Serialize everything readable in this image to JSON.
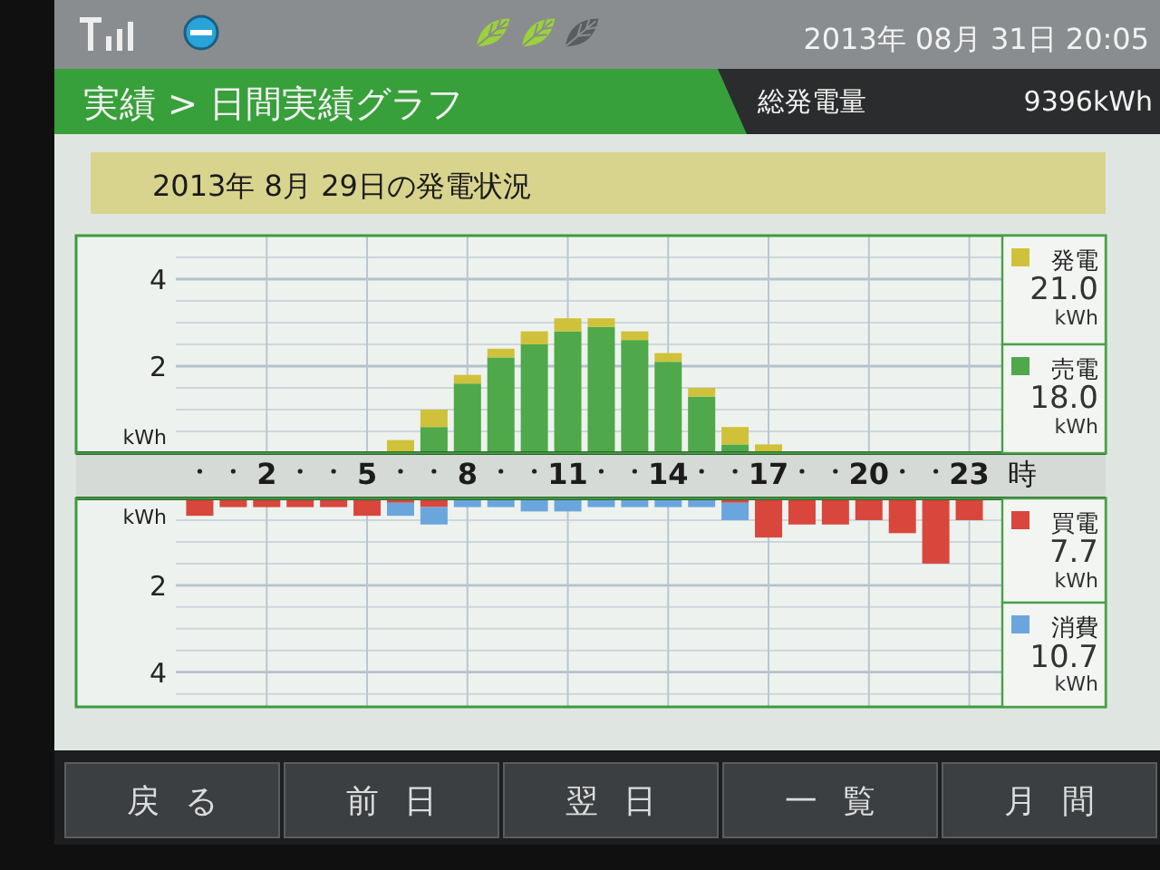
{
  "chart_data": [
    {
      "type": "other",
      "title": "実績 > 日間実績グラフ",
      "annotations": [
        "総発電量",
        "9396kWh",
        "2013年 08月 31日 20:05",
        "戻る",
        "前日",
        "翌日",
        "一覧",
        "月間"
      ]
    },
    {
      "type": "bar",
      "title": "2013年 8月 29日の発電状況",
      "stacked": true,
      "categories": [
        null,
        null,
        "2",
        null,
        null,
        "5",
        null,
        null,
        "8",
        null,
        null,
        "11",
        null,
        null,
        "14",
        null,
        null,
        "17",
        null,
        null,
        "20",
        null,
        null,
        "23"
      ],
      "xlabel": "時",
      "ylabel": "kWh",
      "ylim": [
        0,
        5
      ],
      "yticks": [
        {
          "value": 0.5,
          "label": null
        },
        {
          "value": 1,
          "label": null
        },
        {
          "value": 1.5,
          "label": null
        },
        {
          "value": 2,
          "label": "2"
        },
        {
          "value": 2.5,
          "label": null
        },
        {
          "value": 3,
          "label": null
        },
        {
          "value": 3.5,
          "label": null
        },
        {
          "value": 4,
          "label": "4"
        },
        {
          "value": 4.5,
          "label": null
        }
      ],
      "grid": true,
      "legend": "right",
      "series": [
        {
          "name": "売電",
          "color": "#4fa84a",
          "values": [
            0,
            0,
            0,
            0,
            0,
            0,
            0,
            0.6,
            1.6,
            2.2,
            2.5,
            2.8,
            2.9,
            2.6,
            2.1,
            1.3,
            0.2,
            0,
            0,
            0,
            0,
            0,
            0,
            0
          ]
        },
        {
          "name": "発電",
          "color": "#cfc23a",
          "values": [
            0,
            0,
            0,
            0,
            0,
            0,
            0.3,
            0.4,
            0.2,
            0.2,
            0.3,
            0.3,
            0.2,
            0.2,
            0.2,
            0.2,
            0.4,
            0.2,
            0,
            0,
            0,
            0,
            0,
            0
          ]
        }
      ],
      "annotations": [
        "18.0 kWh",
        "21.0 kWh"
      ]
    },
    {
      "type": "bar",
      "stacked": true,
      "categories": [
        null,
        null,
        "2",
        null,
        null,
        "5",
        null,
        null,
        "8",
        null,
        null,
        "11",
        null,
        null,
        "14",
        null,
        null,
        "17",
        null,
        null,
        "20",
        null,
        null,
        "23"
      ],
      "tick_labels": "y",
      "ylabel": "kWh",
      "ylim": [
        4.8,
        0
      ],
      "yticks": [
        {
          "value": 0.5,
          "label": null
        },
        {
          "value": 1,
          "label": null
        },
        {
          "value": 1.5,
          "label": null
        },
        {
          "value": 2,
          "label": "2"
        },
        {
          "value": 2.5,
          "label": null
        },
        {
          "value": 3,
          "label": null
        },
        {
          "value": 3.5,
          "label": null
        },
        {
          "value": 4,
          "label": "4"
        },
        {
          "value": 4.5,
          "label": null
        }
      ],
      "grid": true,
      "legend": "right",
      "series": [
        {
          "name": "買電",
          "color": "#d9463c",
          "values": [
            0.4,
            0.2,
            0.2,
            0.2,
            0.2,
            0.4,
            0.1,
            0.2,
            0,
            0,
            0,
            0,
            0,
            0,
            0,
            0,
            0.1,
            0.9,
            0.6,
            0.6,
            0.5,
            0.8,
            1.5,
            0.5
          ]
        },
        {
          "name": "消費",
          "color": "#6aa6dd",
          "values": [
            0,
            0,
            0,
            0,
            0,
            0,
            0.3,
            0.4,
            0.2,
            0.2,
            0.3,
            0.3,
            0.2,
            0.2,
            0.2,
            0.2,
            0.4,
            0,
            0,
            0,
            0,
            0,
            0,
            0
          ]
        }
      ],
      "annotations": [
        "7.7 kWh",
        "10.7 kWh"
      ]
    }
  ]
}
